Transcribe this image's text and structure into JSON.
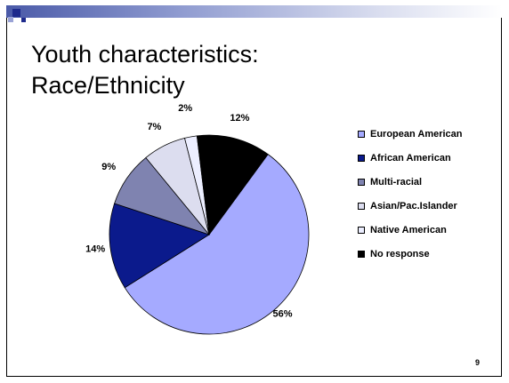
{
  "slide": {
    "title_lines": [
      "Youth characteristics:",
      "Race/Ethnicity"
    ],
    "page_number": "9"
  },
  "chart_data": {
    "type": "pie",
    "labels": [
      "European American",
      "African American",
      "Multi-racial",
      "Asian/Pac.Islander",
      "Native American",
      "No response"
    ],
    "values": [
      56,
      14,
      9,
      7,
      2,
      12
    ],
    "value_labels": [
      "56%",
      "14%",
      "9%",
      "7%",
      "2%",
      "12%"
    ],
    "colors": [
      "#a5aaff",
      "#0b1a8c",
      "#7f83b0",
      "#dcddef",
      "#eceeff",
      "#000000"
    ],
    "legend_position": "right"
  }
}
